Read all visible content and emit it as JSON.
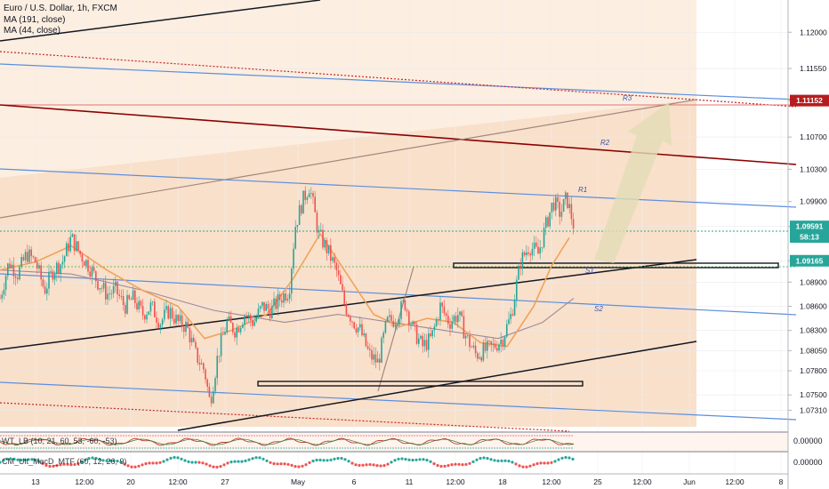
{
  "header": {
    "title": "Euro / U.S. Dollar, 1h, FXCM",
    "indicators": [
      "MA (191, close)",
      "MA (44, close)"
    ]
  },
  "chart_data": {
    "type": "candlestick",
    "title": "Euro / U.S. Dollar, 1h, FXCM",
    "ylim": [
      1.0705,
      1.124
    ],
    "yticks": [
      "1.12000",
      "1.11550",
      "1.11152",
      "1.10700",
      "1.10300",
      "1.09900",
      "1.09591",
      "1.09165",
      "1.08900",
      "1.08600",
      "1.08300",
      "1.08050",
      "1.07800",
      "1.07500",
      "1.07310"
    ],
    "y_values": [
      1.12,
      1.1155,
      1.11152,
      1.107,
      1.103,
      1.099,
      1.09591,
      1.09165,
      1.089,
      1.086,
      1.083,
      1.0805,
      1.078,
      1.075,
      1.0731
    ],
    "xticks": [
      "13",
      "12:00",
      "20",
      "12:00",
      "27",
      "May",
      "6",
      "11",
      "12:00",
      "18",
      "12:00",
      "25",
      "12:00",
      "Jun",
      "12:00",
      "8"
    ],
    "price_labels": [
      {
        "text": "1.11152",
        "value": 1.11152,
        "color": "#b71c1c"
      },
      {
        "text": "1.09591",
        "value": 1.09591,
        "color": "#26a69a"
      },
      {
        "text": "58:13",
        "value": 1.0946,
        "color": "#26a69a"
      },
      {
        "text": "1.09165",
        "value": 1.09165,
        "color": "#26a69a"
      }
    ],
    "annotations": [
      "R3",
      "R2",
      "R1",
      "S1",
      "S2"
    ],
    "close_path": [
      [
        0,
        1.087
      ],
      [
        10,
        1.0915
      ],
      [
        20,
        1.09
      ],
      [
        30,
        1.0925
      ],
      [
        40,
        1.0915
      ],
      [
        50,
        1.088
      ],
      [
        60,
        1.0905
      ],
      [
        70,
        1.0915
      ],
      [
        80,
        1.0945
      ],
      [
        90,
        1.0925
      ],
      [
        100,
        1.091
      ],
      [
        110,
        1.089
      ],
      [
        120,
        1.0875
      ],
      [
        130,
        1.088
      ],
      [
        140,
        1.086
      ],
      [
        150,
        1.087
      ],
      [
        160,
        1.085
      ],
      [
        170,
        1.086
      ],
      [
        180,
        1.084
      ],
      [
        190,
        1.0855
      ],
      [
        200,
        1.084
      ],
      [
        210,
        1.0835
      ],
      [
        220,
        1.08
      ],
      [
        230,
        1.078
      ],
      [
        236,
        1.074
      ],
      [
        245,
        1.08
      ],
      [
        255,
        1.084
      ],
      [
        265,
        1.083
      ],
      [
        275,
        1.085
      ],
      [
        285,
        1.084
      ],
      [
        295,
        1.086
      ],
      [
        305,
        1.0855
      ],
      [
        315,
        1.087
      ],
      [
        325,
        1.088
      ],
      [
        332,
        1.096
      ],
      [
        340,
        1.099
      ],
      [
        348,
        1.101
      ],
      [
        358,
        1.095
      ],
      [
        368,
        1.093
      ],
      [
        378,
        1.0905
      ],
      [
        388,
        1.086
      ],
      [
        398,
        1.084
      ],
      [
        405,
        1.083
      ],
      [
        415,
        1.08
      ],
      [
        425,
        1.079
      ],
      [
        435,
        1.084
      ],
      [
        445,
        1.0845
      ],
      [
        455,
        1.0865
      ],
      [
        465,
        1.083
      ],
      [
        475,
        1.081
      ],
      [
        485,
        1.082
      ],
      [
        495,
        1.086
      ],
      [
        505,
        1.084
      ],
      [
        515,
        1.085
      ],
      [
        525,
        1.082
      ],
      [
        535,
        1.08
      ],
      [
        545,
        1.0805
      ],
      [
        555,
        1.081
      ],
      [
        565,
        1.082
      ],
      [
        575,
        1.085
      ],
      [
        585,
        1.0915
      ],
      [
        595,
        1.0935
      ],
      [
        605,
        1.0925
      ],
      [
        615,
        1.0965
      ],
      [
        622,
        1.099
      ],
      [
        630,
        1.0975
      ],
      [
        637,
        1.0995
      ],
      [
        645,
        1.096
      ]
    ],
    "ma_44": [
      [
        0,
        1.0905
      ],
      [
        40,
        1.0915
      ],
      [
        80,
        1.0935
      ],
      [
        120,
        1.0905
      ],
      [
        160,
        1.088
      ],
      [
        200,
        1.086
      ],
      [
        230,
        1.082
      ],
      [
        260,
        1.083
      ],
      [
        300,
        1.085
      ],
      [
        330,
        1.0895
      ],
      [
        360,
        1.095
      ],
      [
        390,
        1.09
      ],
      [
        420,
        1.085
      ],
      [
        450,
        1.0835
      ],
      [
        480,
        1.0845
      ],
      [
        510,
        1.084
      ],
      [
        540,
        1.0815
      ],
      [
        570,
        1.081
      ],
      [
        600,
        1.086
      ],
      [
        620,
        1.091
      ],
      [
        640,
        1.0945
      ]
    ],
    "ma_191": [
      [
        0,
        1.0905
      ],
      [
        80,
        1.09
      ],
      [
        160,
        1.088
      ],
      [
        240,
        1.0855
      ],
      [
        320,
        1.084
      ],
      [
        380,
        1.085
      ],
      [
        440,
        1.084
      ],
      [
        500,
        1.083
      ],
      [
        560,
        1.082
      ],
      [
        610,
        1.084
      ],
      [
        645,
        1.087
      ]
    ],
    "sub_panels": [
      {
        "label": "WT_LB (10, 21, 60, 53, -60, -53)",
        "value": "0.00000"
      },
      {
        "label": "CM_Ult_MacD_MTF (60, 12, 26, 9)",
        "value": "0.00000"
      }
    ]
  }
}
